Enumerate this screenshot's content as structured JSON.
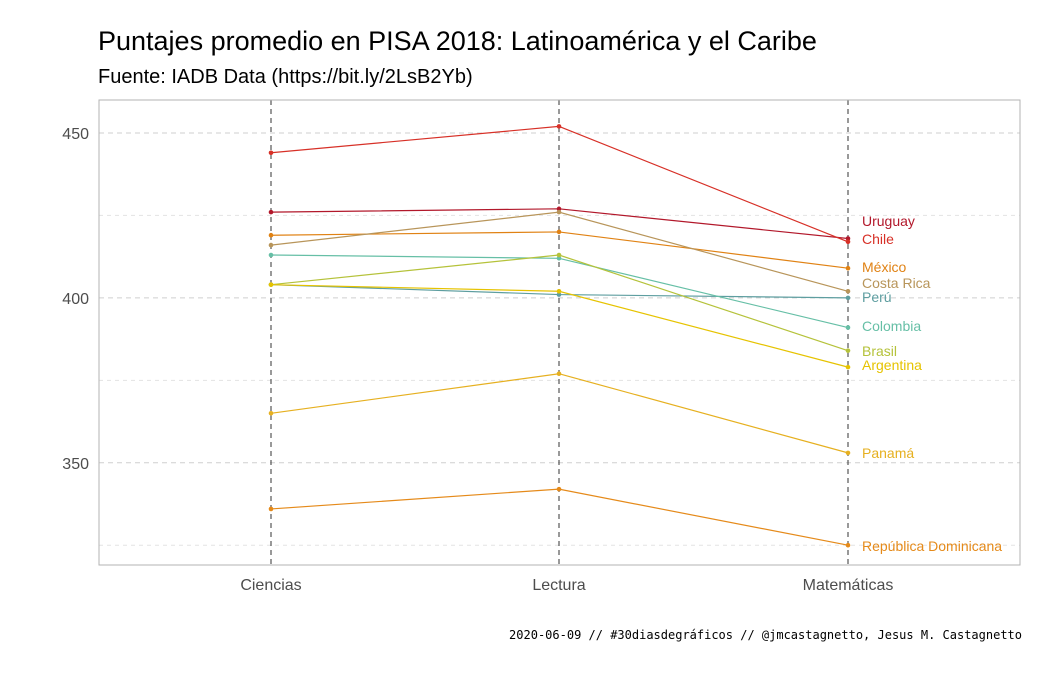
{
  "header": {
    "title": "Puntajes promedio en PISA 2018: Latinoamérica y el Caribe",
    "subtitle": "Fuente: IADB Data (https://bit.ly/2LsB2Yb)"
  },
  "footer": {
    "caption": "2020-06-09 // #30diasdegráficos // @jmcastagnetto, Jesus M. Castagnetto"
  },
  "chart_data": {
    "type": "line",
    "title": "Puntajes promedio en PISA 2018: Latinoamérica y el Caribe",
    "subtitle": "Fuente: IADB Data (https://bit.ly/2LsB2Yb)",
    "xlabel": "",
    "ylabel": "",
    "categories": [
      "Ciencias",
      "Lectura",
      "Matemáticas"
    ],
    "ylim": [
      319,
      460
    ],
    "yticks": [
      350,
      400,
      450
    ],
    "grid": true,
    "legend": "direct labels at right end of lines",
    "series": [
      {
        "name": "Uruguay",
        "values": [
          426,
          427,
          418
        ],
        "color": "#b2182b"
      },
      {
        "name": "Chile",
        "values": [
          444,
          452,
          417
        ],
        "color": "#d73027"
      },
      {
        "name": "México",
        "values": [
          419,
          420,
          409
        ],
        "color": "#e08214"
      },
      {
        "name": "Costa Rica",
        "values": [
          416,
          426,
          402
        ],
        "color": "#b8955a"
      },
      {
        "name": "Perú",
        "values": [
          404,
          401,
          400
        ],
        "color": "#5e9ea0"
      },
      {
        "name": "Colombia",
        "values": [
          413,
          412,
          391
        ],
        "color": "#66bfa6"
      },
      {
        "name": "Brasil",
        "values": [
          404,
          413,
          384
        ],
        "color": "#b5c23a"
      },
      {
        "name": "Argentina",
        "values": [
          404,
          402,
          379
        ],
        "color": "#e6c300"
      },
      {
        "name": "Panamá",
        "values": [
          365,
          377,
          353
        ],
        "color": "#e6b020"
      },
      {
        "name": "República Dominicana",
        "values": [
          336,
          342,
          325
        ],
        "color": "#e58a1a"
      }
    ]
  }
}
